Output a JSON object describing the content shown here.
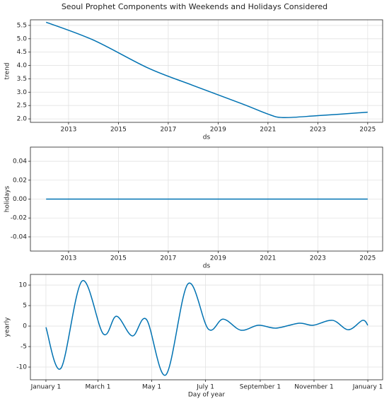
{
  "title": "Seoul Prophet Components with Weekends and Holidays Considered",
  "chart_data": [
    {
      "type": "line",
      "xlabel": "ds",
      "ylabel": "trend",
      "color": "#0072B2",
      "grid": true,
      "x": [
        2012.1,
        2014,
        2016.2,
        2018,
        2020,
        2021,
        2021.6,
        2023,
        2025
      ],
      "values": [
        5.62,
        4.95,
        3.9,
        3.25,
        2.55,
        2.18,
        2.05,
        2.12,
        2.25
      ],
      "xlim": [
        2011.47,
        2025.6
      ],
      "ylim": [
        1.87,
        5.71
      ],
      "xticks": [
        2013,
        2015,
        2017,
        2019,
        2021,
        2023,
        2025
      ],
      "yticks": [
        {
          "value": 2,
          "label": "2.0"
        },
        2.5,
        {
          "value": 3,
          "label": "3.0"
        },
        3.5,
        {
          "value": 4,
          "label": "4.0"
        },
        4.5,
        {
          "value": 5,
          "label": "5.0"
        },
        5.5
      ]
    },
    {
      "type": "line",
      "xlabel": "ds",
      "ylabel": "holidays",
      "color": "#0072B2",
      "grid": true,
      "x": [
        2012.1,
        2025
      ],
      "values": [
        0,
        0
      ],
      "xlim": [
        2011.47,
        2025.6
      ],
      "ylim": [
        -0.055,
        0.055
      ],
      "xticks": [
        2013,
        2015,
        2017,
        2019,
        2021,
        2023,
        2025
      ],
      "yticks": [
        -0.04,
        -0.02,
        {
          "value": 0,
          "label": "0.00"
        },
        0.02,
        0.04
      ]
    },
    {
      "type": "line",
      "xlabel": "Day of year",
      "ylabel": "yearly",
      "color": "#0072B2",
      "grid": true,
      "x": [
        0,
        17,
        41,
        65,
        80,
        98,
        114,
        136,
        161,
        184,
        201,
        221,
        241,
        261,
        287,
        303,
        325,
        343,
        359,
        365
      ],
      "values": [
        -0.3,
        -10.3,
        11.0,
        -1.9,
        2.4,
        -2.4,
        1.6,
        -11.9,
        10.3,
        -0.7,
        1.7,
        -1.0,
        0.2,
        -0.5,
        0.7,
        0.2,
        1.4,
        -0.9,
        1.4,
        0.2
      ],
      "xlim": [
        -17.6,
        381.8
      ],
      "ylim": [
        -13.1,
        12.6
      ],
      "xticks": [
        {
          "value": 0,
          "label": "January 1"
        },
        {
          "value": 59,
          "label": "March 1"
        },
        {
          "value": 120,
          "label": "May 1"
        },
        {
          "value": 181,
          "label": "July 1"
        },
        {
          "value": 243,
          "label": "September 1"
        },
        {
          "value": 304,
          "label": "November 1"
        },
        {
          "value": 365,
          "label": "January 1"
        }
      ],
      "yticks": [
        -10,
        -5,
        0,
        5,
        10
      ]
    }
  ]
}
